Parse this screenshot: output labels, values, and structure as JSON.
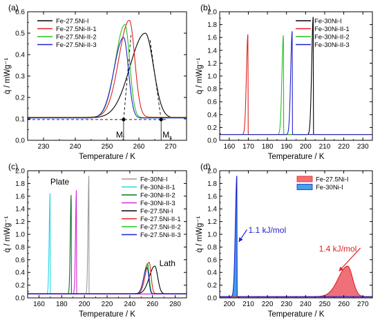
{
  "chart_data": [
    {
      "panel": "(a)",
      "type": "line",
      "xlabel": "Temperature / K",
      "ylabel": "q̇ / mWg⁻¹",
      "xlim": [
        225,
        275
      ],
      "ylim": [
        0,
        0.6
      ],
      "xticks": [
        230,
        240,
        250,
        260,
        270
      ],
      "yticks": [
        0.0,
        0.1,
        0.2,
        0.3,
        0.4,
        0.5,
        0.6
      ],
      "legend_position": "top-left",
      "series": [
        {
          "name": "Fe-27.5Ni-I",
          "color": "#000000",
          "baseline": 0.105,
          "peaks": [
            {
              "x": 262.0,
              "y": 0.5,
              "wl": 4.8,
              "wr": 2.6
            }
          ]
        },
        {
          "name": "Fe-27.5Ni-II-1",
          "color": "#e0201f",
          "baseline": 0.108,
          "peaks": [
            {
              "x": 257.0,
              "y": 0.56,
              "wl": 3.3,
              "wr": 1.7
            }
          ]
        },
        {
          "name": "Fe-27.5Ni-II-2",
          "color": "#22c222",
          "baseline": 0.106,
          "peaks": [
            {
              "x": 255.6,
              "y": 0.54,
              "wl": 3.0,
              "wr": 1.5
            }
          ]
        },
        {
          "name": "Fe-27.5Ni-II-3",
          "color": "#1f1fd0",
          "baseline": 0.104,
          "peaks": [
            {
              "x": 255.2,
              "y": 0.48,
              "wl": 3.0,
              "wr": 1.5
            }
          ]
        }
      ],
      "baseline_construction": {
        "level": 0.097,
        "x_from": 225,
        "x_to": 269,
        "dashed_to_peak": [
          [
            255.2,
            0.097,
            257.5,
            0.49
          ],
          [
            267.0,
            0.097,
            263.5,
            0.47
          ]
        ]
      },
      "markers": [
        {
          "label": "M",
          "subscript": "f",
          "x": 255.2,
          "y": 0.097
        },
        {
          "label": "M",
          "subscript": "s",
          "x": 267.0,
          "y": 0.097
        }
      ]
    },
    {
      "panel": "(b)",
      "type": "line",
      "xlabel": "Temperature / K",
      "ylabel": "q̇ / mWg⁻¹",
      "xlim": [
        155,
        235
      ],
      "ylim": [
        0,
        2.0
      ],
      "xticks": [
        160,
        170,
        180,
        190,
        200,
        210,
        220,
        230
      ],
      "yticks": [
        0.0,
        0.2,
        0.4,
        0.6,
        0.8,
        1.0,
        1.2,
        1.4,
        1.6,
        1.8,
        2.0
      ],
      "legend_position": "top-right",
      "series": [
        {
          "name": "Fe-30Ni-I",
          "color": "#000000",
          "baseline": 0.09,
          "peaks": [
            {
              "x": 204.0,
              "y": 1.92,
              "wl": 0.8,
              "wr": 0.05
            }
          ]
        },
        {
          "name": "Fe-30Ni-II-1",
          "color": "#e0201f",
          "baseline": 0.09,
          "peaks": [
            {
              "x": 169.8,
              "y": 1.65,
              "wl": 0.8,
              "wr": 0.05
            }
          ]
        },
        {
          "name": "Fe-30Ni-II-2",
          "color": "#22c222",
          "baseline": 0.09,
          "peaks": [
            {
              "x": 188.4,
              "y": 1.64,
              "wl": 0.8,
              "wr": 0.05
            }
          ]
        },
        {
          "name": "Fe-30Ni-II-3",
          "color": "#1f1fd0",
          "baseline": 0.09,
          "peaks": [
            {
              "x": 193.0,
              "y": 1.7,
              "wl": 0.8,
              "wr": 0.05
            }
          ]
        }
      ]
    },
    {
      "panel": "(c)",
      "type": "line",
      "xlabel": "Temperature / K",
      "ylabel": "q̇ / mWg⁻¹",
      "xlim": [
        150,
        290
      ],
      "ylim": [
        0,
        2.0
      ],
      "xticks": [
        160,
        180,
        200,
        220,
        240,
        260,
        280
      ],
      "yticks": [
        0.0,
        0.2,
        0.4,
        0.6,
        0.8,
        1.0,
        1.2,
        1.4,
        1.6,
        1.8,
        2.0
      ],
      "legend_position": "top-right",
      "annotations": [
        {
          "text": "Plate",
          "x": 170,
          "y": 1.78
        },
        {
          "text": "Lath",
          "x": 266,
          "y": 0.5
        }
      ],
      "series": [
        {
          "name": "Fe-30Ni-I",
          "color": "#9a9a9a",
          "baseline": 0.06,
          "peaks": [
            {
              "x": 204.0,
              "y": 1.92,
              "wl": 0.8,
              "wr": 0.05
            }
          ]
        },
        {
          "name": "Fe-30Ni-II-1",
          "color": "#22d6e6",
          "baseline": 0.06,
          "peaks": [
            {
              "x": 169.8,
              "y": 1.65,
              "wl": 0.8,
              "wr": 0.05
            }
          ]
        },
        {
          "name": "Fe-30Ni-II-2",
          "color": "#0d6e2a",
          "baseline": 0.06,
          "peaks": [
            {
              "x": 188.4,
              "y": 1.64,
              "wl": 0.8,
              "wr": 0.05
            }
          ]
        },
        {
          "name": "Fe-30Ni-II-3",
          "color": "#d62ad6",
          "baseline": 0.06,
          "peaks": [
            {
              "x": 193.0,
              "y": 1.7,
              "wl": 0.8,
              "wr": 0.05
            }
          ]
        },
        {
          "name": "Fe-27.5Ni-I",
          "color": "#000000",
          "baseline": 0.065,
          "peaks": [
            {
              "x": 262.0,
              "y": 0.5,
              "wl": 4.8,
              "wr": 2.6
            }
          ]
        },
        {
          "name": "Fe-27.5Ni-II-1",
          "color": "#e0201f",
          "baseline": 0.068,
          "peaks": [
            {
              "x": 257.0,
              "y": 0.56,
              "wl": 3.3,
              "wr": 1.7
            }
          ]
        },
        {
          "name": "Fe-27.5Ni-II-2",
          "color": "#22c222",
          "baseline": 0.066,
          "peaks": [
            {
              "x": 255.6,
              "y": 0.54,
              "wl": 3.0,
              "wr": 1.5
            }
          ]
        },
        {
          "name": "Fe-27.5Ni-II-3",
          "color": "#1f1fd0",
          "baseline": 0.064,
          "peaks": [
            {
              "x": 255.2,
              "y": 0.48,
              "wl": 3.0,
              "wr": 1.5
            }
          ]
        }
      ]
    },
    {
      "panel": "(d)",
      "type": "area",
      "xlabel": "Temperature / K",
      "ylabel": "q̇ / mWg⁻¹",
      "xlim": [
        195,
        275
      ],
      "ylim": [
        0,
        2.0
      ],
      "xticks": [
        200,
        210,
        220,
        230,
        240,
        250,
        260,
        270
      ],
      "yticks": [
        0.0,
        0.2,
        0.4,
        0.6,
        0.8,
        1.0,
        1.2,
        1.4,
        1.6,
        1.8,
        2.0
      ],
      "legend_position": "top-right",
      "annotations": [
        {
          "text": "1.1 kJ/mol",
          "color": "#1f1fd0",
          "x": 210,
          "y": 1.02,
          "arrow_to": [
            205.0,
            0.88
          ]
        },
        {
          "text": "1.4 kJ/mol",
          "color": "#e0201f",
          "x": 247,
          "y": 0.73,
          "arrow_to": [
            257.5,
            0.42
          ]
        }
      ],
      "series": [
        {
          "name": "Fe-27.5Ni-I",
          "color": "#e0201f",
          "fill": "#f0707a",
          "baseline": 0.02,
          "fill_range": [
            204.5,
            275
          ],
          "peaks": [
            {
              "x": 262.0,
              "y": 0.5,
              "wl": 4.8,
              "wr": 2.6
            }
          ]
        },
        {
          "name": "Fe-30Ni-I",
          "color": "#1f1fd0",
          "fill": "#3ea3e8",
          "baseline": 0.02,
          "fill_range": [
            195,
            204.8
          ],
          "peaks": [
            {
              "x": 204.0,
              "y": 1.92,
              "wl": 0.8,
              "wr": 0.05
            }
          ]
        }
      ]
    }
  ]
}
